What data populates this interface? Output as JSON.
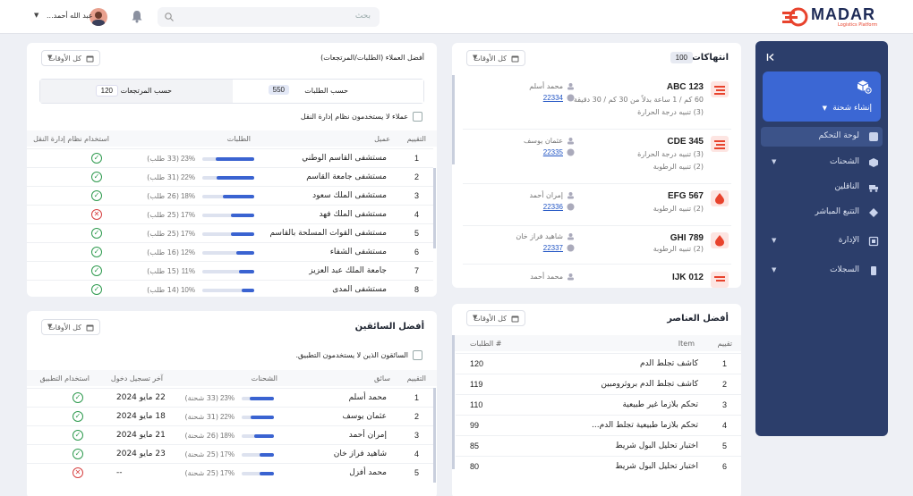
{
  "header": {
    "logo_text": "MADAR",
    "logo_tagline": "Logistics Platform",
    "search_placeholder": "بحث",
    "user_name": "عبد الله أحمد...",
    "brand_color": "#e8432d"
  },
  "sidebar": {
    "create_label": "إنشاء شحنة",
    "items": [
      {
        "label": "لوحة التحكم",
        "icon": "dashboard-icon",
        "active": true
      },
      {
        "label": "الشحنات",
        "icon": "box-icon",
        "expandable": true
      },
      {
        "label": "الناقلين",
        "icon": "truck-icon"
      },
      {
        "label": "التتبع المباشر",
        "icon": "tracking-icon"
      },
      {
        "label": "الإدارة",
        "icon": "admin-icon",
        "expandable": true
      },
      {
        "label": "السجلات",
        "icon": "logs-icon",
        "expandable": true
      }
    ]
  },
  "filter_label": "كل الأوقات",
  "violations": {
    "title": "انتهاكات",
    "count": "100",
    "items": [
      {
        "code": "123 ABC",
        "icon": "truck-icon",
        "details": [
          "60 كم / 1 ساعة بدلاً من 30 كم / 30 دقيقة",
          "(3) تنبيه درجة الحرارة"
        ],
        "driver": "محمد أسلم",
        "shipment": "22334"
      },
      {
        "code": "345 CDE",
        "icon": "truck-icon",
        "details": [
          "(3) تنبيه درجة الحرارة",
          "(2) تنبيه الرطوبة"
        ],
        "driver": "عثمان يوسف",
        "shipment": "22335"
      },
      {
        "code": "567 EFG",
        "icon": "drop-icon",
        "details": [
          "(2) تنبيه الرطوبة"
        ],
        "driver": "إمران أحمد",
        "shipment": "22336"
      },
      {
        "code": "789 GHI",
        "icon": "drop-icon",
        "details": [
          "(2) تنبيه الرطوبة"
        ],
        "driver": "شاهيد فراز خان",
        "shipment": "22337"
      },
      {
        "code": "012 IJK",
        "icon": "truck-icon",
        "details": [],
        "driver": "محمد أحمد",
        "shipment": ""
      }
    ]
  },
  "customers": {
    "title": "أفضل العملاء (الطلبات/المرتجعات)",
    "tab_orders_label": "حسب الطلبات",
    "tab_orders_value": "550",
    "tab_returns_label": "حسب المرتجعات",
    "tab_returns_value": "120",
    "checkbox_label": "عملاء لا يستخدمون نظام إدارة النقل",
    "columns": [
      "التقييم",
      "عميل",
      "الطلبات",
      "استخدام نظام إدارة النقل"
    ],
    "rows": [
      {
        "rank": "1",
        "name": "مستشفى القاسم الوطني",
        "pct": "23%",
        "orders": "(33 طلب)",
        "fill": 0.75,
        "uses": true
      },
      {
        "rank": "2",
        "name": "مستشفى جامعة القاسم",
        "pct": "22%",
        "orders": "(31 طلب)",
        "fill": 0.72,
        "uses": true
      },
      {
        "rank": "3",
        "name": "مستشفى الملك سعود",
        "pct": "18%",
        "orders": "(26 طلب)",
        "fill": 0.6,
        "uses": true
      },
      {
        "rank": "4",
        "name": "مستشفى الملك فهد",
        "pct": "17%",
        "orders": "(25 طلب)",
        "fill": 0.45,
        "uses": false
      },
      {
        "rank": "5",
        "name": "مستشفى القوات المسلحة بالقاسم",
        "pct": "17%",
        "orders": "(25 طلب)",
        "fill": 0.45,
        "uses": true
      },
      {
        "rank": "6",
        "name": "مستشفى الشفاء",
        "pct": "12%",
        "orders": "(16 طلب)",
        "fill": 0.35,
        "uses": true
      },
      {
        "rank": "7",
        "name": "جامعة الملك عبد العزيز",
        "pct": "11%",
        "orders": "(15 طلب)",
        "fill": 0.3,
        "uses": true
      },
      {
        "rank": "8",
        "name": "مستشفى المدى",
        "pct": "10%",
        "orders": "(14 طلب)",
        "fill": 0.25,
        "uses": true
      }
    ]
  },
  "drivers": {
    "title": "أفضل السائقين",
    "checkbox_label": "السائقون الذين لا يستخدمون التطبيق.",
    "columns": [
      "التقييم",
      "سائق",
      "الشحنات",
      "آخر تسجيل دخول",
      "استخدام التطبيق"
    ],
    "rows": [
      {
        "rank": "1",
        "name": "محمد أسلم",
        "pct": "23%",
        "count": "(33 شحنة)",
        "fill": 0.75,
        "login": "22 مايو 2024",
        "uses": true
      },
      {
        "rank": "2",
        "name": "عثمان يوسف",
        "pct": "22%",
        "count": "(31 شحنة)",
        "fill": 0.72,
        "login": "18 مايو 2024",
        "uses": true
      },
      {
        "rank": "3",
        "name": "إمران أحمد",
        "pct": "18%",
        "count": "(26 شحنة)",
        "fill": 0.6,
        "login": "21 مايو 2024",
        "uses": true
      },
      {
        "rank": "4",
        "name": "شاهيد فراز خان",
        "pct": "17%",
        "count": "(25 شحنة)",
        "fill": 0.45,
        "login": "23 مايو 2024",
        "uses": true
      },
      {
        "rank": "5",
        "name": "محمد أفزل",
        "pct": "17%",
        "count": "(25 شحنة)",
        "fill": 0.45,
        "login": "--",
        "uses": false
      }
    ]
  },
  "items": {
    "title": "أفضل العناصر",
    "columns": [
      "تقييم",
      "Item",
      "# الطلبات"
    ],
    "rows": [
      {
        "rank": "1",
        "name": "كاشف تجلط الدم",
        "orders": "120"
      },
      {
        "rank": "2",
        "name": "كاشف تجلط الدم بروثرومبين",
        "orders": "119"
      },
      {
        "rank": "3",
        "name": "تحكم بلازما غير طبيعية",
        "orders": "110"
      },
      {
        "rank": "4",
        "name": "تحكم بلازما طبيعية تجلط الدم...",
        "orders": "99"
      },
      {
        "rank": "5",
        "name": "اختبار تحليل البول شريط",
        "orders": "85"
      },
      {
        "rank": "6",
        "name": "اختبار تحليل البول شريط",
        "orders": "80"
      }
    ]
  }
}
